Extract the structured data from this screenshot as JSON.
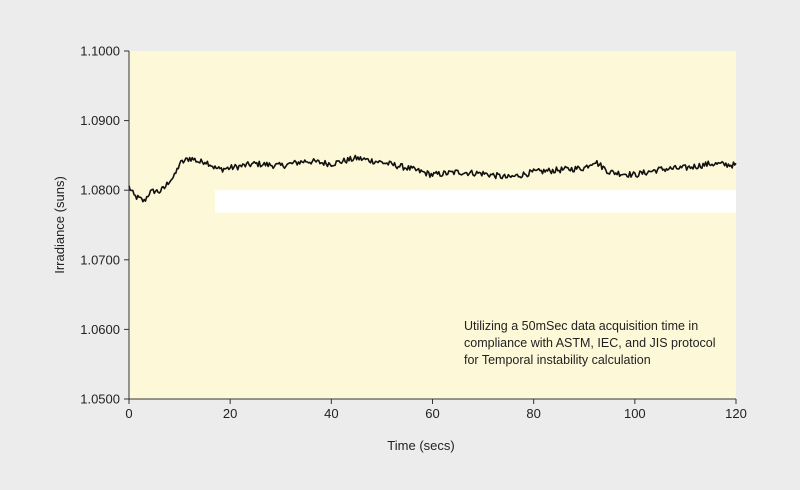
{
  "colors": {
    "page_background": "#ececec",
    "plot_background": "#fdf8d8",
    "line": "#111111",
    "axis": "#333333",
    "white_band": "#ffffff"
  },
  "chart_data": {
    "type": "line",
    "title": "",
    "xlabel": "Time (secs)",
    "ylabel": "Irradiance (suns)",
    "xlim": [
      0,
      120
    ],
    "ylim": [
      1.05,
      1.1
    ],
    "x_ticks": [
      "0",
      "20",
      "40",
      "60",
      "80",
      "100",
      "120"
    ],
    "y_ticks": [
      "1.0500",
      "1.0600",
      "1.0700",
      "1.0800",
      "1.0900",
      "1.1000"
    ],
    "grid": false,
    "legend": "none",
    "annotation": [
      "Utilizing a 50mSec data acquisition time in",
      "compliance with ASTM, IEC, and JIS protocol",
      "for Temporal instability calculation"
    ],
    "white_band": {
      "x_range": [
        17,
        120
      ],
      "y_range": [
        1.0768,
        1.08
      ]
    },
    "series": [
      {
        "x": [
          0,
          1,
          2,
          3,
          4,
          5,
          6,
          7,
          8,
          9,
          10,
          11,
          12,
          13,
          14,
          15,
          16,
          17,
          18,
          20,
          25,
          30,
          35,
          40,
          45,
          50,
          55,
          60,
          65,
          70,
          75,
          80,
          85,
          90,
          92,
          95,
          100,
          105,
          110,
          115,
          120
        ],
        "y": [
          1.0805,
          1.0792,
          1.0788,
          1.0784,
          1.0796,
          1.0799,
          1.0798,
          1.0803,
          1.0814,
          1.082,
          1.0838,
          1.0842,
          1.0846,
          1.0844,
          1.084,
          1.0842,
          1.0838,
          1.0832,
          1.083,
          1.0832,
          1.0838,
          1.0835,
          1.0842,
          1.0838,
          1.0846,
          1.084,
          1.0832,
          1.0822,
          1.0826,
          1.0824,
          1.0818,
          1.0826,
          1.0829,
          1.0832,
          1.0842,
          1.0826,
          1.0822,
          1.083,
          1.0832,
          1.0838,
          1.0836
        ]
      }
    ]
  }
}
